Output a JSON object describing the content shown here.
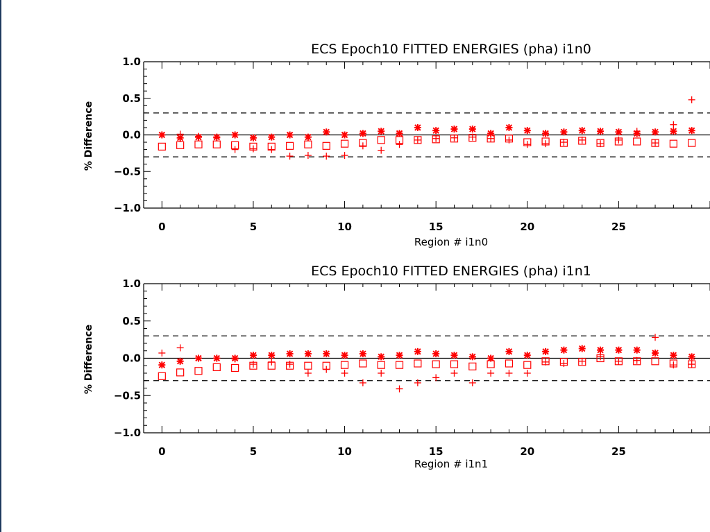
{
  "chart_data": [
    {
      "type": "scatter",
      "title": "ECS Epoch10 FITTED ENERGIES (pha) i1n0",
      "xlabel": "Region # i1n0",
      "ylabel": "% Difference",
      "ylim": [
        -1.0,
        1.0
      ],
      "xlim": [
        -1,
        30
      ],
      "xticks": [
        0,
        5,
        10,
        15,
        20,
        25
      ],
      "yticks": [
        -1.0,
        -0.5,
        0.0,
        0.5,
        1.0
      ],
      "ytick_labels": [
        "−1.0",
        "−0.5",
        "0.0",
        "0.5",
        "1.0"
      ],
      "reference_lines": [
        0.0,
        0.3,
        -0.3
      ],
      "x": [
        0,
        1,
        2,
        3,
        4,
        5,
        6,
        7,
        8,
        9,
        10,
        11,
        12,
        13,
        14,
        15,
        16,
        17,
        18,
        19,
        20,
        21,
        22,
        23,
        24,
        25,
        26,
        27,
        28,
        29
      ],
      "series": [
        {
          "marker": "asterisk",
          "color": "#ff0000",
          "values": [
            0.0,
            -0.04,
            -0.03,
            -0.03,
            0.0,
            -0.04,
            -0.03,
            0.0,
            -0.03,
            0.04,
            0.0,
            0.02,
            0.05,
            0.02,
            0.1,
            0.06,
            0.08,
            0.08,
            0.02,
            0.1,
            0.06,
            0.02,
            0.04,
            0.06,
            0.05,
            0.04,
            0.02,
            0.04,
            0.05,
            0.06
          ]
        },
        {
          "marker": "square",
          "color": "#ff0000",
          "values": [
            -0.16,
            -0.14,
            -0.13,
            -0.13,
            -0.14,
            -0.16,
            -0.16,
            -0.15,
            -0.13,
            -0.15,
            -0.12,
            -0.11,
            -0.07,
            -0.07,
            -0.07,
            -0.06,
            -0.05,
            -0.04,
            -0.05,
            -0.05,
            -0.1,
            -0.09,
            -0.11,
            -0.08,
            -0.11,
            -0.09,
            -0.09,
            -0.11,
            -0.12,
            -0.11
          ]
        },
        {
          "marker": "plus",
          "color": "#ff0000",
          "values": [
            0.0,
            0.01,
            -0.02,
            -0.04,
            -0.2,
            -0.19,
            -0.2,
            -0.29,
            -0.28,
            -0.29,
            -0.28,
            -0.15,
            -0.21,
            -0.13,
            -0.07,
            -0.05,
            -0.04,
            -0.03,
            -0.05,
            -0.07,
            -0.13,
            -0.12,
            -0.1,
            -0.07,
            -0.12,
            -0.07,
            0.05,
            -0.11,
            0.14,
            0.48
          ]
        }
      ]
    },
    {
      "type": "scatter",
      "title": "ECS Epoch10 FITTED ENERGIES (pha) i1n1",
      "xlabel": "Region # i1n1",
      "ylabel": "% Difference",
      "ylim": [
        -1.0,
        1.0
      ],
      "xlim": [
        -1,
        30
      ],
      "xticks": [
        0,
        5,
        10,
        15,
        20,
        25
      ],
      "yticks": [
        -1.0,
        -0.5,
        0.0,
        0.5,
        1.0
      ],
      "ytick_labels": [
        "−1.0",
        "−0.5",
        "0.0",
        "0.5",
        "1.0"
      ],
      "reference_lines": [
        0.0,
        0.3,
        -0.3
      ],
      "x": [
        0,
        1,
        2,
        3,
        4,
        5,
        6,
        7,
        8,
        9,
        10,
        11,
        12,
        13,
        14,
        15,
        16,
        17,
        18,
        19,
        20,
        21,
        22,
        23,
        24,
        25,
        26,
        27,
        28,
        29
      ],
      "series": [
        {
          "marker": "asterisk",
          "color": "#ff0000",
          "values": [
            -0.09,
            -0.04,
            0.0,
            0.0,
            0.0,
            0.04,
            0.04,
            0.06,
            0.06,
            0.06,
            0.04,
            0.06,
            0.02,
            0.04,
            0.09,
            0.06,
            0.04,
            0.02,
            0.0,
            0.09,
            0.04,
            0.09,
            0.11,
            0.13,
            0.11,
            0.11,
            0.11,
            0.07,
            0.04,
            0.02
          ]
        },
        {
          "marker": "square",
          "color": "#ff0000",
          "values": [
            -0.24,
            -0.19,
            -0.17,
            -0.12,
            -0.13,
            -0.1,
            -0.1,
            -0.1,
            -0.1,
            -0.1,
            -0.09,
            -0.07,
            -0.09,
            -0.09,
            -0.07,
            -0.08,
            -0.08,
            -0.11,
            -0.08,
            -0.07,
            -0.09,
            -0.04,
            -0.05,
            -0.05,
            0.0,
            -0.04,
            -0.04,
            -0.04,
            -0.07,
            -0.08
          ]
        },
        {
          "marker": "plus",
          "color": "#ff0000",
          "values": [
            0.07,
            0.14,
            0.0,
            0.0,
            -0.01,
            -0.08,
            -0.05,
            -0.08,
            -0.2,
            -0.15,
            -0.2,
            -0.33,
            -0.2,
            -0.41,
            -0.33,
            -0.26,
            -0.2,
            -0.33,
            -0.2,
            -0.2,
            -0.2,
            -0.05,
            -0.07,
            -0.04,
            0.02,
            -0.04,
            -0.03,
            0.28,
            -0.09,
            -0.08
          ]
        }
      ]
    }
  ]
}
